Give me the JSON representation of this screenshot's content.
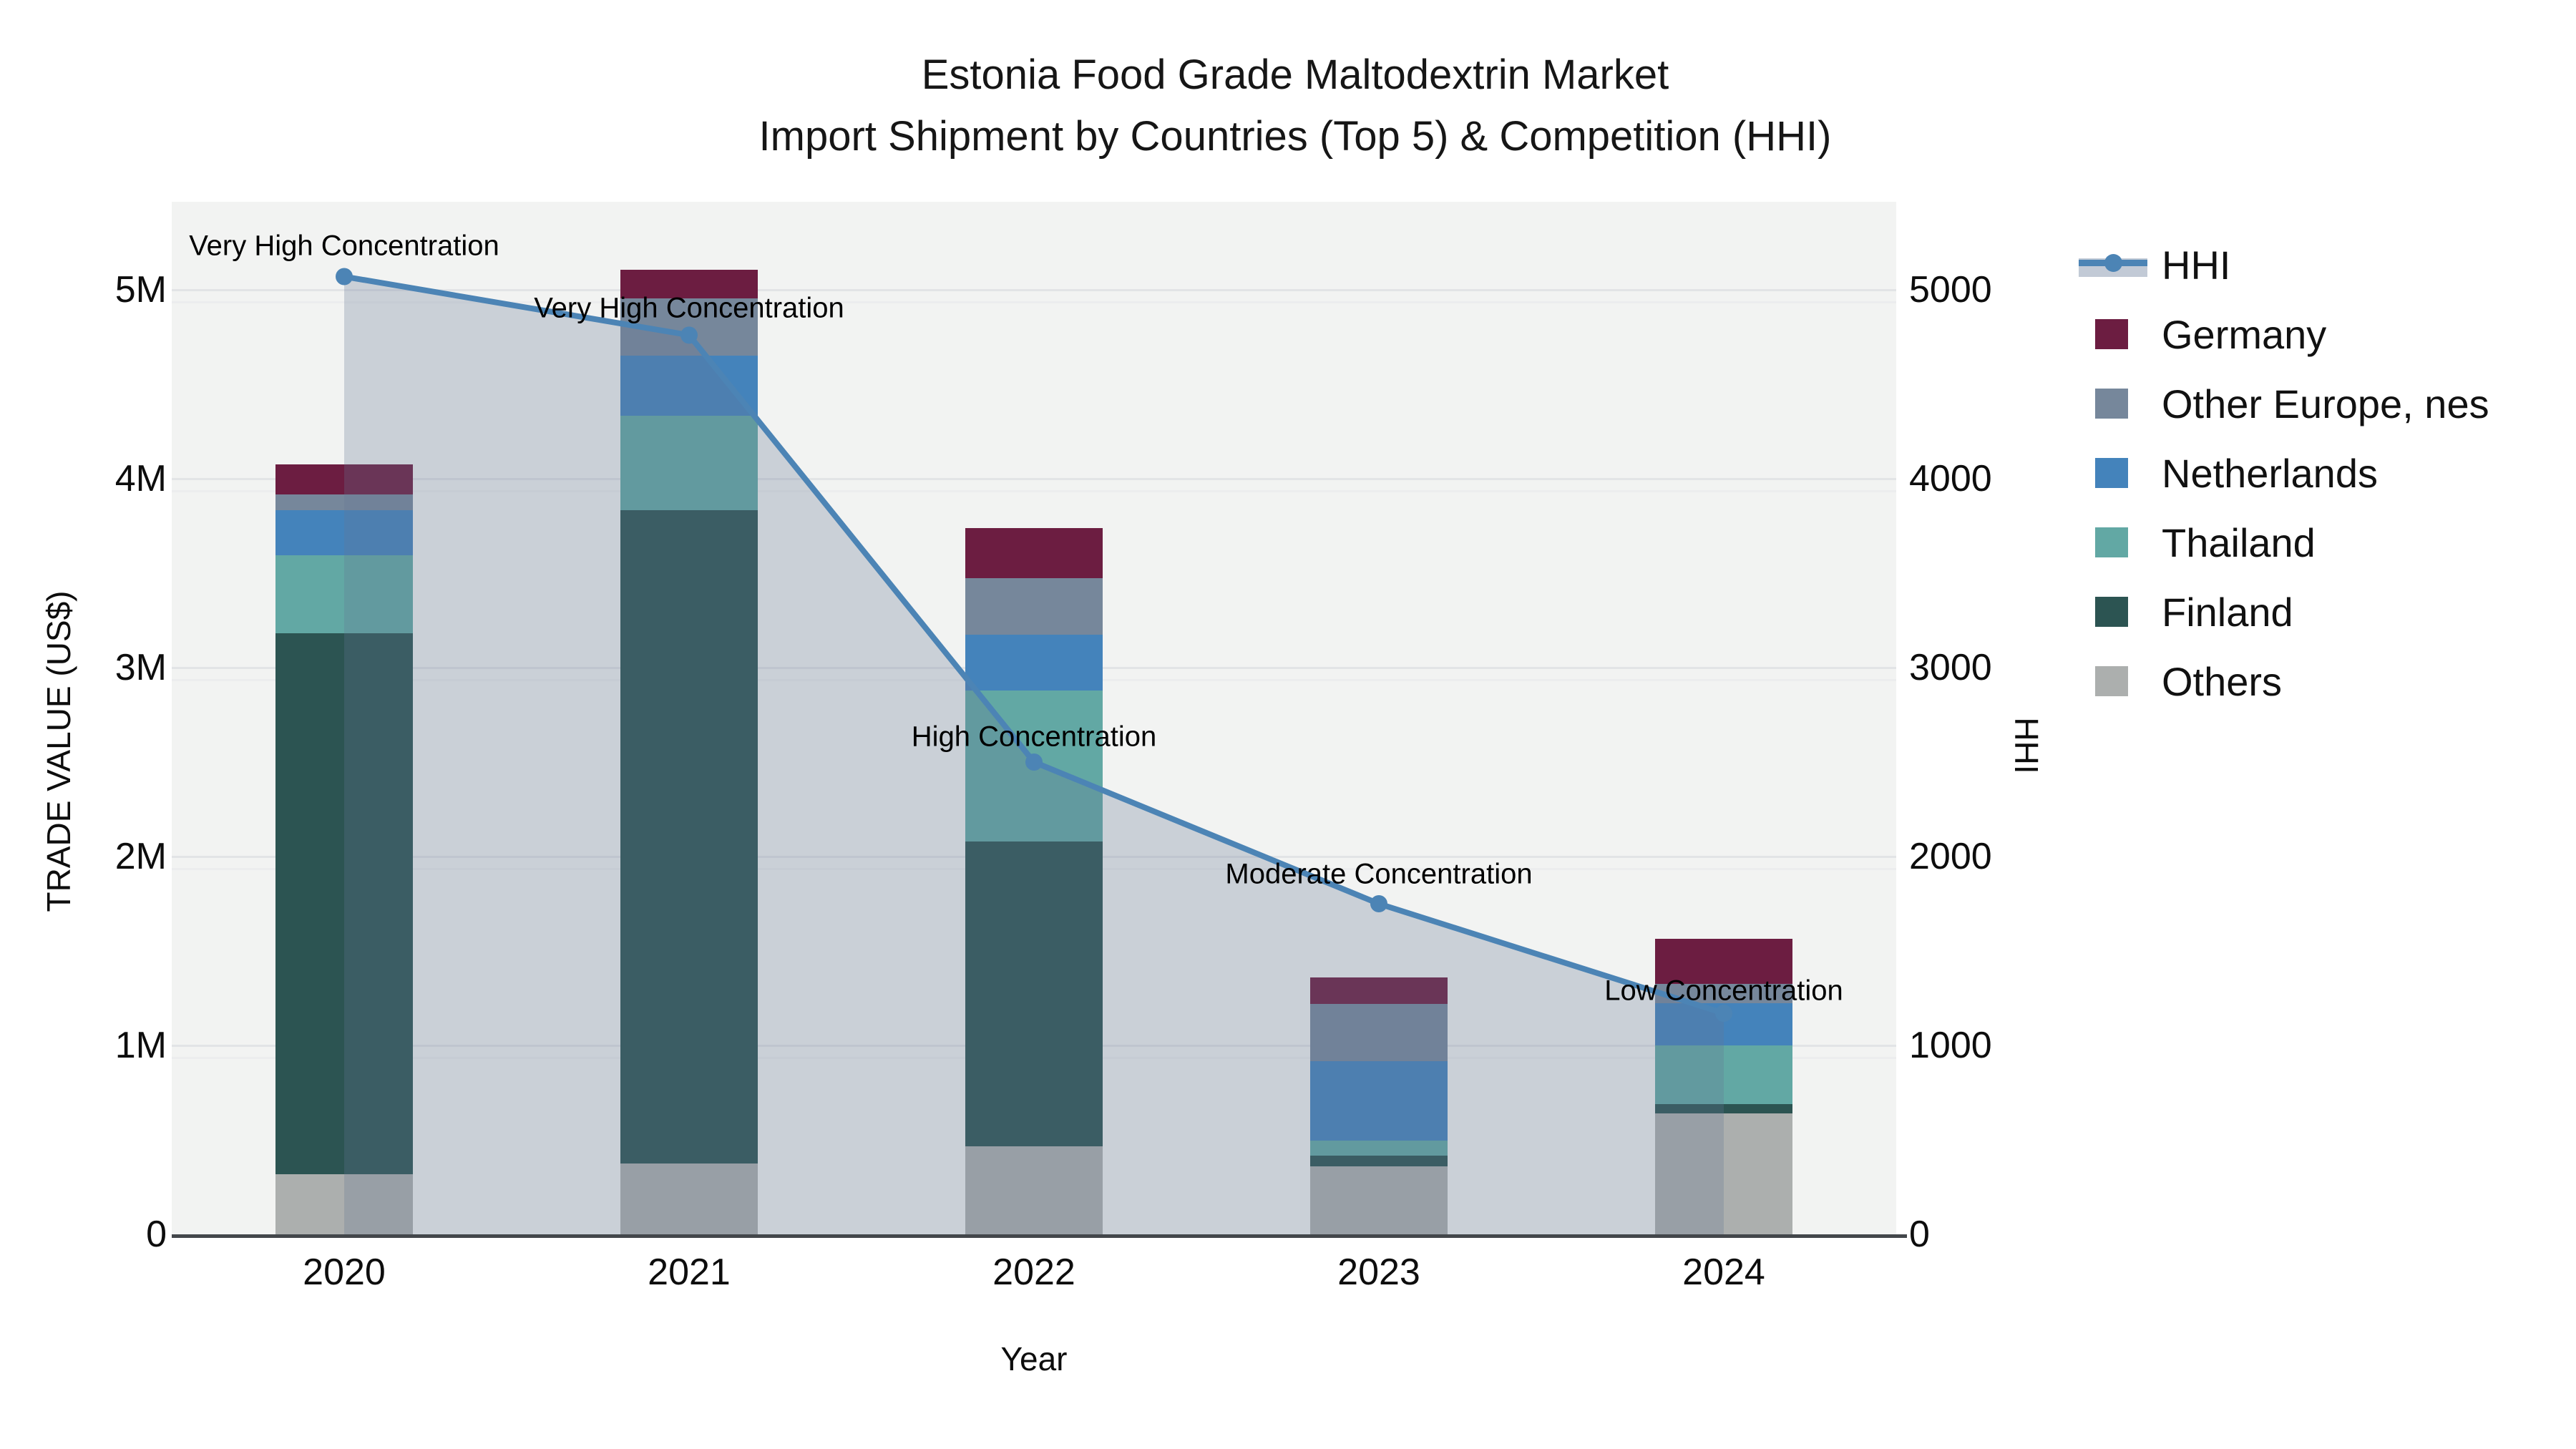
{
  "title": {
    "line1": "Estonia Food Grade Maltodextrin Market",
    "line2": "Import Shipment by Countries (Top 5) & Competition (HHI)"
  },
  "axes": {
    "x": {
      "title": "Year",
      "categories": [
        "2020",
        "2021",
        "2022",
        "2023",
        "2024"
      ]
    },
    "y_left": {
      "title": "TRADE VALUE (US$)",
      "ticks": [
        "0",
        "1M",
        "2M",
        "3M",
        "4M",
        "5M"
      ]
    },
    "y_right": {
      "title": "HHI",
      "ticks": [
        "0",
        "1000",
        "2000",
        "3000",
        "4000",
        "5000"
      ]
    }
  },
  "legend": [
    {
      "label": "HHI",
      "type": "line",
      "color": "#4c84b5"
    },
    {
      "label": "Germany",
      "type": "swatch",
      "color": "#6c1d41"
    },
    {
      "label": "Other Europe, nes",
      "type": "swatch",
      "color": "#76879b"
    },
    {
      "label": "Netherlands",
      "type": "swatch",
      "color": "#4483bb"
    },
    {
      "label": "Thailand",
      "type": "swatch",
      "color": "#62a8a4"
    },
    {
      "label": "Finland",
      "type": "swatch",
      "color": "#2c5452"
    },
    {
      "label": "Others",
      "type": "swatch",
      "color": "#acafae"
    }
  ],
  "chart_data": {
    "type": "bar+line",
    "categories": [
      "2020",
      "2021",
      "2022",
      "2023",
      "2024"
    ],
    "bar_unit": "US$",
    "stack_order_bottom_to_top": [
      "Others",
      "Finland",
      "Thailand",
      "Netherlands",
      "Other Europe, nes",
      "Germany"
    ],
    "series": [
      {
        "name": "Others",
        "values": [
          320000,
          375000,
          465000,
          360000,
          640000
        ]
      },
      {
        "name": "Finland",
        "values": [
          2860000,
          3460000,
          1615000,
          55000,
          50000
        ]
      },
      {
        "name": "Thailand",
        "values": [
          415000,
          500000,
          800000,
          80000,
          310000
        ]
      },
      {
        "name": "Netherlands",
        "values": [
          240000,
          315000,
          295000,
          420000,
          225000
        ]
      },
      {
        "name": "Other Europe, nes",
        "values": [
          80000,
          305000,
          300000,
          305000,
          100000
        ]
      },
      {
        "name": "Germany",
        "values": [
          160000,
          150000,
          265000,
          140000,
          240000
        ]
      }
    ],
    "line_series": {
      "name": "HHI",
      "values": [
        5070,
        4760,
        2500,
        1750,
        1170
      ]
    },
    "annotations": [
      "Very High Concentration",
      "Very High Concentration",
      "High Concentration",
      "Moderate Concentration",
      "Low Concentration"
    ],
    "ylim_left": [
      0,
      5500000
    ],
    "ylim_right": [
      0,
      5500
    ],
    "grid": true,
    "legend_position": "right"
  },
  "colors": {
    "plot_background": "#f2f3f2",
    "hhi_line": "#4c84b5",
    "hhi_area_fill": "rgba(100,118,148,0.28)",
    "axis_line": "#43474b"
  }
}
